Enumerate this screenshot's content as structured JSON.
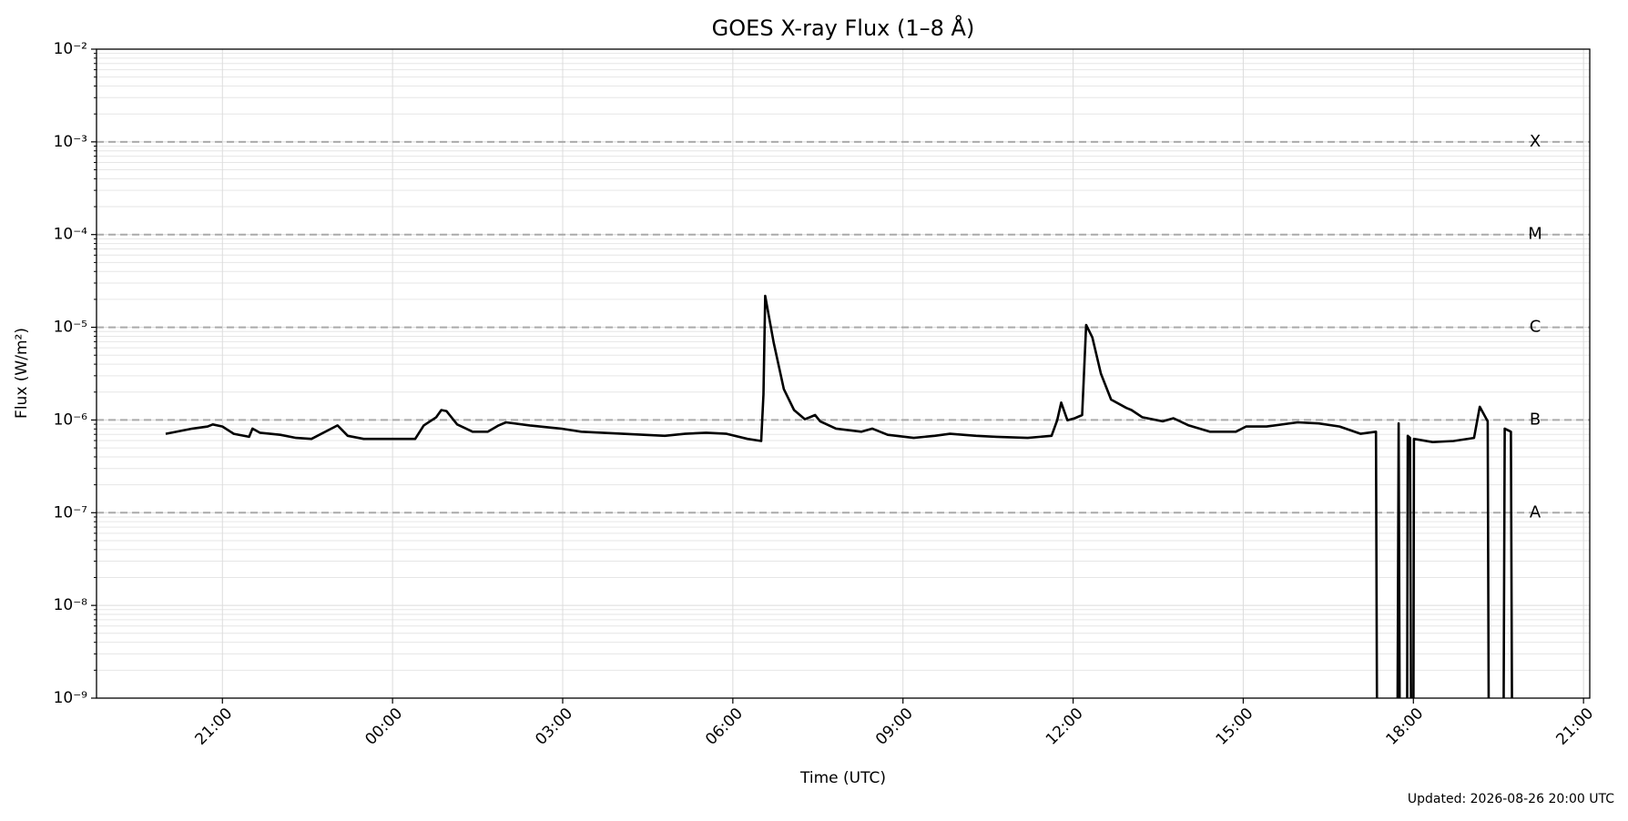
{
  "chart_data": {
    "type": "line",
    "title": "GOES X-ray Flux (1–8 Å)",
    "xlabel": "Time (UTC)",
    "ylabel": "Flux (W/m²)",
    "footer": "Updated: 2026-08-26 20:00 UTC",
    "log_y": true,
    "grid": true,
    "minor_grid": true,
    "xlim": [
      -5.22,
      21.11
    ],
    "ylim": [
      1e-09,
      0.01
    ],
    "xticks": [
      {
        "value": -3,
        "label": "21:00"
      },
      {
        "value": 0,
        "label": "00:00"
      },
      {
        "value": 3,
        "label": "03:00"
      },
      {
        "value": 6,
        "label": "06:00"
      },
      {
        "value": 9,
        "label": "09:00"
      },
      {
        "value": 12,
        "label": "12:00"
      },
      {
        "value": 15,
        "label": "15:00"
      },
      {
        "value": 18,
        "label": "18:00"
      },
      {
        "value": 21,
        "label": "21:00"
      }
    ],
    "yticks": [
      {
        "value": 1e-09,
        "label": "10⁻⁹"
      },
      {
        "value": 1e-08,
        "label": "10⁻⁸"
      },
      {
        "value": 1e-07,
        "label": "10⁻⁷"
      },
      {
        "value": 1e-06,
        "label": "10⁻⁶"
      },
      {
        "value": 1e-05,
        "label": "10⁻⁵"
      },
      {
        "value": 0.0001,
        "label": "10⁻⁴"
      },
      {
        "value": 0.001,
        "label": "10⁻³"
      },
      {
        "value": 0.01,
        "label": "10⁻²"
      }
    ],
    "flare_classes": [
      {
        "label": "X",
        "value": 0.001
      },
      {
        "label": "M",
        "value": 0.0001
      },
      {
        "label": "C",
        "value": 1e-05
      },
      {
        "label": "B",
        "value": 1e-06
      },
      {
        "label": "A",
        "value": 1e-07
      }
    ],
    "x": [
      -4.0,
      -3.53,
      -3.26,
      -3.17,
      -3.0,
      -2.8,
      -2.53,
      -2.47,
      -2.34,
      -1.98,
      -1.7,
      -1.43,
      -0.97,
      -0.79,
      -0.51,
      0,
      0.4,
      0.55,
      0.77,
      0.86,
      0.95,
      1.14,
      1.41,
      1.68,
      1.87,
      2.0,
      2.42,
      2.97,
      3.33,
      4.06,
      4.8,
      5.16,
      5.53,
      5.89,
      6.26,
      6.5,
      6.54,
      6.57,
      6.72,
      6.9,
      7.08,
      7.27,
      7.45,
      7.54,
      7.82,
      8.27,
      8.46,
      8.73,
      9.19,
      9.56,
      9.83,
      10.29,
      10.65,
      11.2,
      11.62,
      11.72,
      11.79,
      11.9,
      12.03,
      12.16,
      12.23,
      12.34,
      12.49,
      12.67,
      12.94,
      13.03,
      13.22,
      13.58,
      13.77,
      14.04,
      14.41,
      14.87,
      15.05,
      15.41,
      15.96,
      16.33,
      16.7,
      17.07,
      17.34,
      17.36,
      17.72,
      17.74,
      17.76,
      17.89,
      17.9,
      17.94,
      17.96,
      18.0,
      18.01,
      18.34,
      18.71,
      19.07,
      19.17,
      19.31,
      19.33,
      19.59,
      19.61,
      19.72,
      19.74
    ],
    "series": [
      {
        "name": "GOES 1-8 Å",
        "color": "#000000",
        "values": [
          7.1e-07,
          8.08e-07,
          8.51e-07,
          8.95e-07,
          8.51e-07,
          7.1e-07,
          6.58e-07,
          8.08e-07,
          7.29e-07,
          6.92e-07,
          6.41e-07,
          6.25e-07,
          8.73e-07,
          6.75e-07,
          6.25e-07,
          6.25e-07,
          6.25e-07,
          8.73e-07,
          1.07e-06,
          1.28e-06,
          1.25e-06,
          8.95e-07,
          7.48e-07,
          7.48e-07,
          8.73e-07,
          9.43e-07,
          8.73e-07,
          8.08e-07,
          7.48e-07,
          7.1e-07,
          6.75e-07,
          7.1e-07,
          7.29e-07,
          7.1e-07,
          6.25e-07,
          5.93e-07,
          1.89e-06,
          2.18e-05,
          6.85e-06,
          2.15e-06,
          1.28e-06,
          1.02e-06,
          1.13e-06,
          9.68e-07,
          8.08e-07,
          7.48e-07,
          8.08e-07,
          6.92e-07,
          6.41e-07,
          6.75e-07,
          7.1e-07,
          6.75e-07,
          6.58e-07,
          6.41e-07,
          6.75e-07,
          9.93e-07,
          1.54e-06,
          9.93e-07,
          1.045e-06,
          1.13e-06,
          1.06e-05,
          7.78e-06,
          3.16e-06,
          1.66e-06,
          1.35e-06,
          1.28e-06,
          1.07e-06,
          9.68e-07,
          1.045e-06,
          8.73e-07,
          7.48e-07,
          7.48e-07,
          8.51e-07,
          8.51e-07,
          9.43e-07,
          9.18e-07,
          8.51e-07,
          7.1e-07,
          7.48e-07,
          0,
          0,
          9.18e-07,
          0,
          0,
          6.75e-07,
          6.41e-07,
          0,
          0,
          6.25e-07,
          5.78e-07,
          5.93e-07,
          6.41e-07,
          1.39e-06,
          9.68e-07,
          0,
          0,
          8.08e-07,
          7.48e-07,
          0
        ]
      }
    ]
  }
}
